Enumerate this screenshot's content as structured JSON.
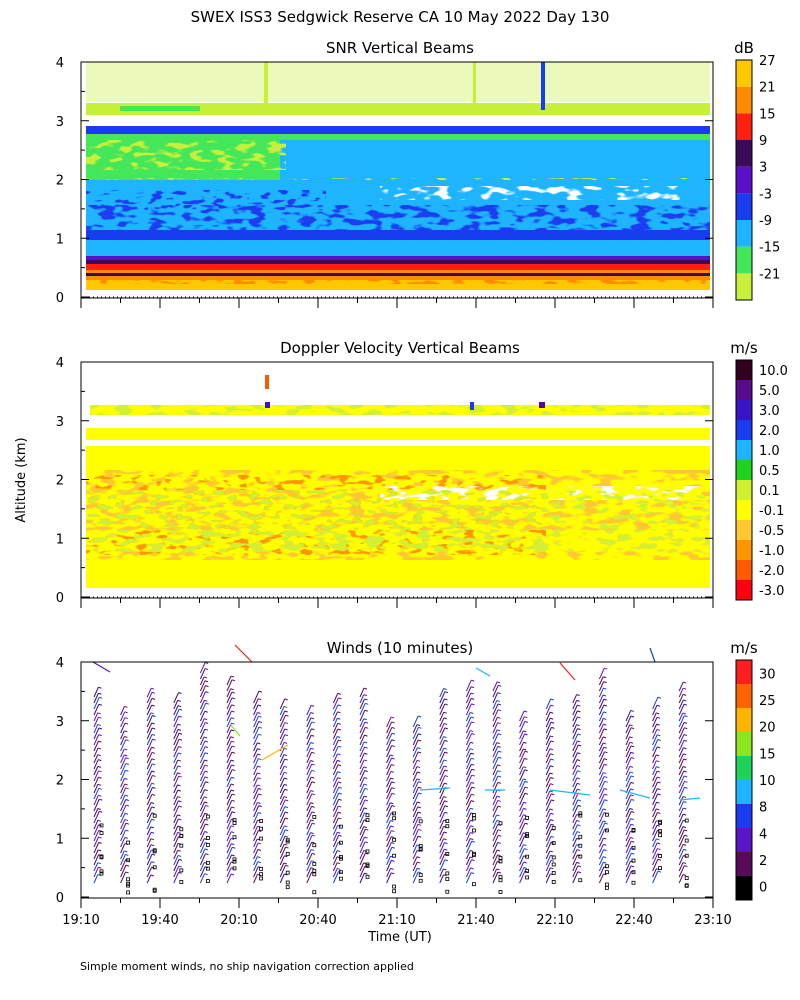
{
  "page": {
    "title": "SWEX ISS3 Sedgwick Reserve CA  10 May 2022 Day 130",
    "y_axis_label": "Altitude (km)",
    "x_axis_label": "Time (UT)",
    "footnote": "Simple moment winds, no ship navigation correction applied"
  },
  "chart_data": [
    {
      "type": "heatmap",
      "title": "SNR Vertical Beams",
      "ylim": [
        0,
        4
      ],
      "y_ticks": [
        "0",
        "1",
        "2",
        "3",
        "4"
      ],
      "colorbar": {
        "unit": "dB",
        "labels": [
          "-21",
          "-15",
          "-9",
          "-3",
          "3",
          "9",
          "15",
          "21",
          "27"
        ],
        "colors": [
          "#c6f03a",
          "#44e65a",
          "#1eb4ff",
          "#1a3cf0",
          "#5a10c8",
          "#3c0a5a",
          "#ff2010",
          "#ff8c00",
          "#ffc800"
        ]
      }
    },
    {
      "type": "heatmap",
      "title": "Doppler Velocity Vertical Beams",
      "ylim": [
        0,
        4
      ],
      "y_ticks": [
        "0",
        "1",
        "2",
        "3",
        "4"
      ],
      "colorbar": {
        "unit": "m/s",
        "labels": [
          "-3.0",
          "-2.0",
          "-1.0",
          "-0.5",
          "-0.1",
          "0.1",
          "0.5",
          "1.0",
          "2.0",
          "3.0",
          "5.0",
          "10.0"
        ],
        "colors": [
          "#ff0010",
          "#ff5a00",
          "#ff9600",
          "#ffc832",
          "#ffff00",
          "#d2f032",
          "#1ed21e",
          "#1eb4ff",
          "#1a3cf0",
          "#3c14c8",
          "#5a0a8c",
          "#32001e"
        ]
      }
    },
    {
      "type": "scatter",
      "title": "Winds (10 minutes)",
      "ylim": [
        0,
        4
      ],
      "y_ticks": [
        "0",
        "1",
        "2",
        "3",
        "4"
      ],
      "x_ticks": [
        "19:10",
        "19:40",
        "20:10",
        "20:40",
        "21:10",
        "21:40",
        "22:10",
        "22:40",
        "23:10"
      ],
      "colorbar": {
        "unit": "m/s",
        "labels": [
          "0",
          "2",
          "4",
          "8",
          "10",
          "15",
          "20",
          "25",
          "30"
        ],
        "colors": [
          "#000000",
          "#5a0a5a",
          "#5a14c8",
          "#1a3cf0",
          "#1eb4ff",
          "#1ed25a",
          "#8ce61e",
          "#ffb400",
          "#ff6400",
          "#ff1e1e"
        ]
      }
    }
  ]
}
